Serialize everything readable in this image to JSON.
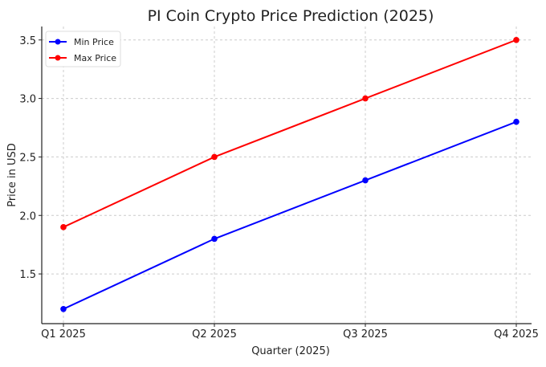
{
  "chart_data": {
    "type": "line",
    "title": "PI Coin Crypto Price Prediction (2025)",
    "xlabel": "Quarter (2025)",
    "ylabel": "Price in USD",
    "categories": [
      "Q1 2025",
      "Q2 2025",
      "Q3 2025",
      "Q4 2025"
    ],
    "series": [
      {
        "name": "Min Price",
        "values": [
          1.2,
          1.8,
          2.3,
          2.8
        ],
        "color": "#0000ff"
      },
      {
        "name": "Max Price",
        "values": [
          1.9,
          2.5,
          3.0,
          3.5
        ],
        "color": "#ff0000"
      }
    ],
    "yticks": [
      "1.5",
      "2.0",
      "2.5",
      "3.0",
      "3.5"
    ],
    "ylim": [
      1.075,
      3.615
    ],
    "grid": true,
    "legend": "top-left"
  }
}
